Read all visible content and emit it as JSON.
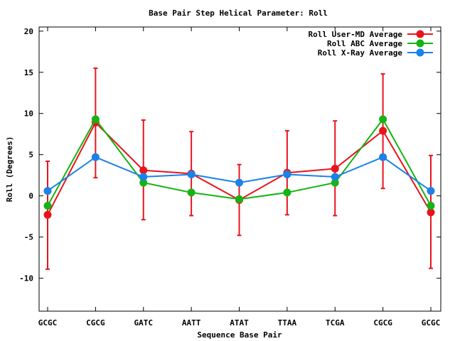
{
  "chart_data": {
    "type": "line",
    "title": "Base Pair Step Helical Parameter: Roll",
    "xlabel": "Sequence Base Pair",
    "ylabel": "Roll (Degrees)",
    "categories": [
      "GCGC",
      "CGCG",
      "GATC",
      "AATT",
      "ATAT",
      "TTAA",
      "TCGA",
      "CGCG",
      "GCGC"
    ],
    "ylim": [
      -14,
      20.5
    ],
    "yticks": [
      -10,
      -5,
      0,
      5,
      10,
      15,
      20
    ],
    "grid": false,
    "legend_position": "top-right",
    "series": [
      {
        "name": "Roll User-MD Average",
        "color": "#e8141c",
        "values": [
          -2.3,
          8.9,
          3.1,
          2.7,
          -0.5,
          2.8,
          3.3,
          7.9,
          -2.0
        ],
        "error_low": [
          -8.9,
          2.2,
          -2.9,
          -2.4,
          -4.8,
          -2.3,
          -2.4,
          0.9,
          -8.8
        ],
        "error_high": [
          4.2,
          15.5,
          9.2,
          7.8,
          3.8,
          7.9,
          9.1,
          14.8,
          4.9
        ]
      },
      {
        "name": "Roll ABC Average",
        "color": "#14b414",
        "values": [
          -1.2,
          9.3,
          1.6,
          0.4,
          -0.4,
          0.4,
          1.6,
          9.3,
          -1.2
        ]
      },
      {
        "name": "Roll X-Ray Average",
        "color": "#1a82e8",
        "values": [
          0.6,
          4.7,
          2.3,
          2.6,
          1.6,
          2.6,
          2.3,
          4.7,
          0.6
        ]
      }
    ]
  }
}
